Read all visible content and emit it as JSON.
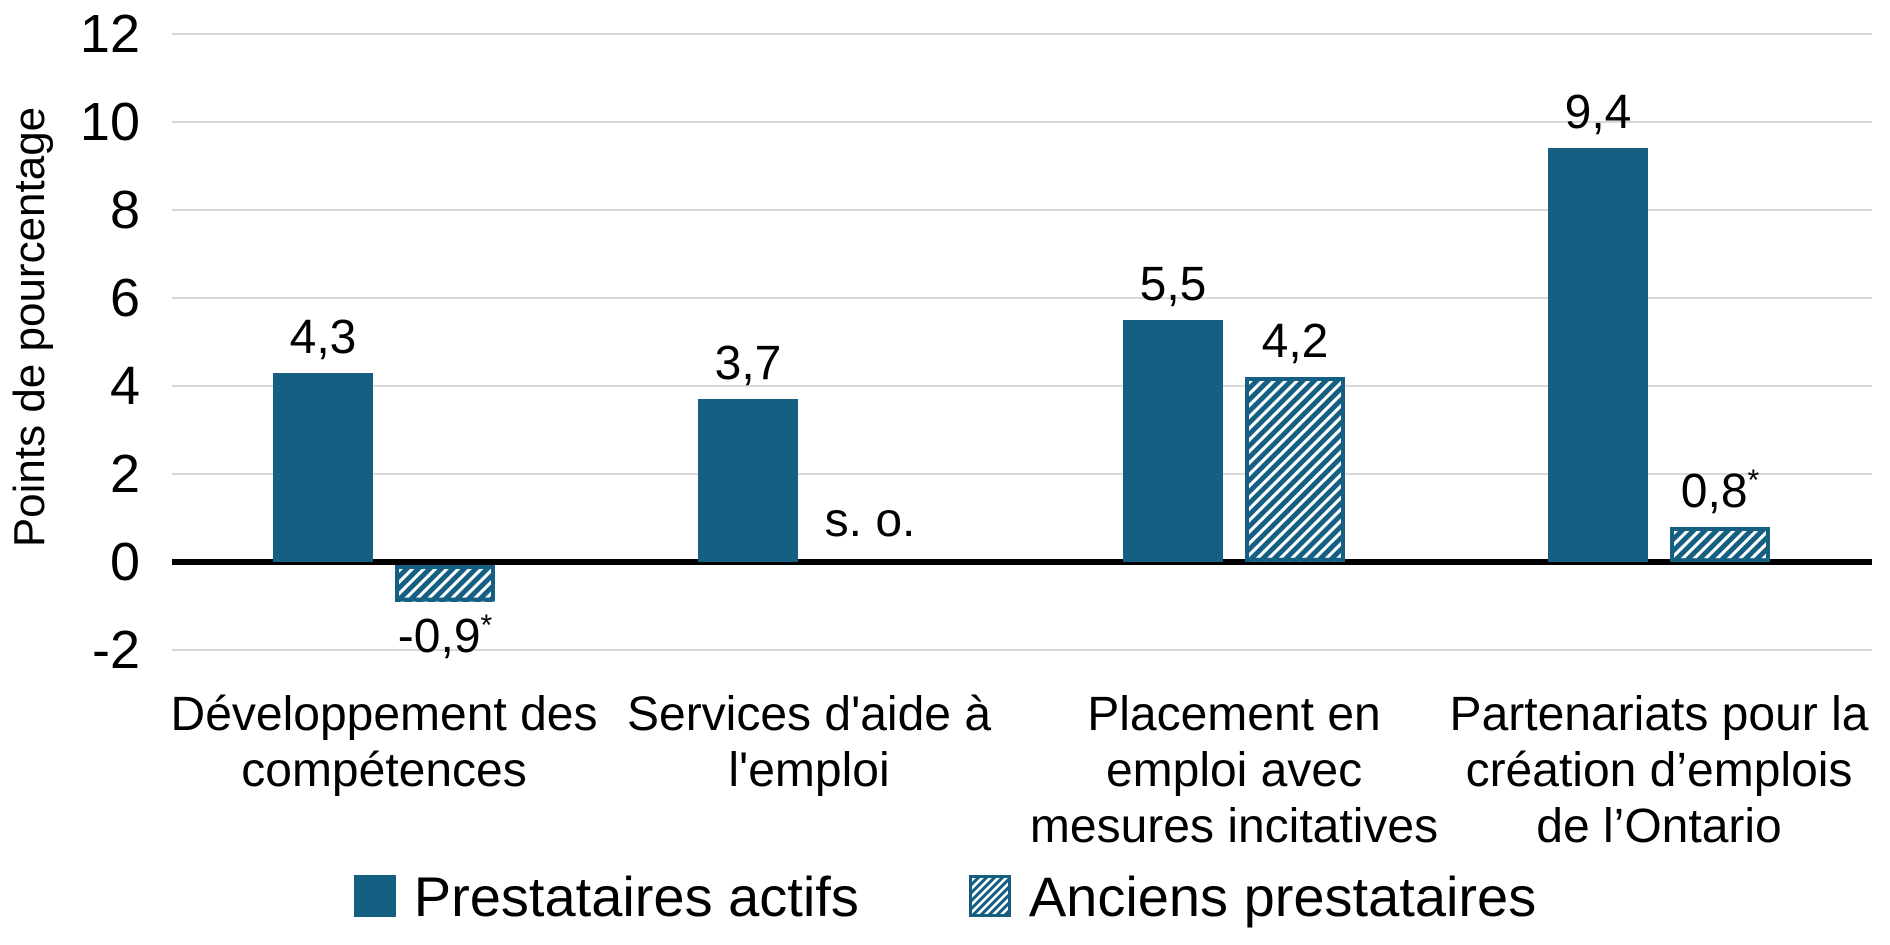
{
  "chart_data": {
    "type": "bar",
    "title": "",
    "ylabel": "Points de pourcentage",
    "ylim": [
      -2,
      12
    ],
    "ytick_step": 2,
    "yticks": [
      12,
      10,
      8,
      6,
      4,
      2,
      0,
      -2
    ],
    "ygrid_values": [
      12,
      10,
      8,
      6,
      4,
      2,
      -2
    ],
    "grid": true,
    "legend_position": "bottom",
    "categories": [
      {
        "label": "Développement des compétences",
        "lines": [
          "Développement des",
          "compétences"
        ]
      },
      {
        "label": "Services d'aide à l'emploi",
        "lines": [
          "Services d'aide à",
          "l'emploi"
        ]
      },
      {
        "label": "Placement en emploi avec mesures incitatives",
        "lines": [
          "Placement en",
          "emploi avec",
          "mesures incitatives"
        ]
      },
      {
        "label": "Partenariats pour la création d’emplois de l’Ontario",
        "lines": [
          "Partenariats pour la",
          "création d’emplois",
          "de l’Ontario"
        ]
      }
    ],
    "series": [
      {
        "name": "Prestataires actifs",
        "style": "solid",
        "values": [
          4.3,
          3.7,
          5.5,
          9.4
        ],
        "value_labels": [
          {
            "text": "4,3"
          },
          {
            "text": "3,7"
          },
          {
            "text": "5,5"
          },
          {
            "text": "9,4"
          }
        ]
      },
      {
        "name": "Anciens prestataires",
        "style": "hatched",
        "values": [
          -0.9,
          null,
          4.2,
          0.8
        ],
        "value_labels": [
          {
            "text": "-0,9",
            "sup": "*"
          },
          {
            "text": "s. o."
          },
          {
            "text": "4,2"
          },
          {
            "text": "0,8",
            "sup": "*"
          }
        ]
      }
    ],
    "na_label": "s. o.",
    "colors": {
      "primary": "#156082",
      "hatch_background": "#FFFFFF",
      "gridline": "#D9D9D9",
      "axis": "#000000",
      "text": "#000000"
    }
  }
}
